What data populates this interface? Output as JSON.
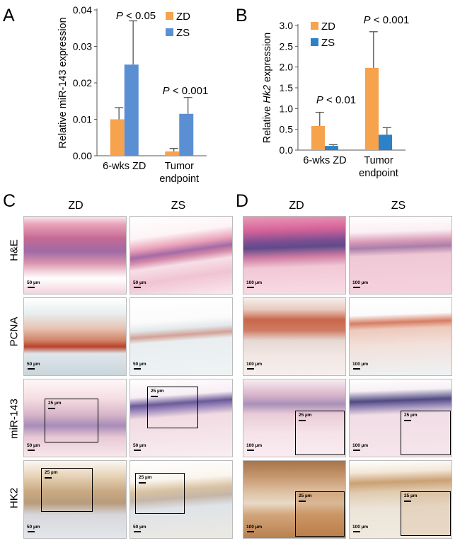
{
  "panels": {
    "a": "A",
    "b": "B",
    "c": "C",
    "d": "D"
  },
  "colors": {
    "zd": "#F7A24C",
    "zs": "#5B8FD3",
    "zs_b": "#2B82C8"
  },
  "chart_data": [
    {
      "type": "bar",
      "id": "A",
      "categories": [
        "6-wks ZD",
        "Tumor endpoint"
      ],
      "category_lines": [
        [
          "6-wks ZD"
        ],
        [
          "Tumor",
          "endpoint"
        ]
      ],
      "series": [
        {
          "name": "ZD",
          "values": [
            0.01,
            0.0012
          ],
          "errors": [
            0.0032,
            0.0008
          ]
        },
        {
          "name": "ZS",
          "values": [
            0.025,
            0.0115
          ],
          "errors": [
            0.012,
            0.0045
          ]
        }
      ],
      "ylabel": "Relative miR-143 expression",
      "ylim": [
        0,
        0.04
      ],
      "ticks": [
        "0.00",
        "0.01",
        "0.02",
        "0.03",
        "0.04"
      ],
      "tick_values": [
        0,
        0.01,
        0.02,
        0.03,
        0.04
      ],
      "annotations": [
        {
          "p": "P",
          "rest": " < 0.05",
          "category": 0
        },
        {
          "p": "P",
          "rest": " < 0.001",
          "category": 1
        }
      ]
    },
    {
      "type": "bar",
      "id": "B",
      "categories": [
        "6-wks ZD",
        "Tumor endpoint"
      ],
      "category_lines": [
        [
          "6-wks ZD"
        ],
        [
          "Tumor",
          "endpoint"
        ]
      ],
      "series": [
        {
          "name": "ZD",
          "values": [
            0.58,
            1.98
          ],
          "errors": [
            0.33,
            0.87
          ]
        },
        {
          "name": "ZS",
          "values": [
            0.1,
            0.37
          ],
          "errors": [
            0.03,
            0.17
          ]
        }
      ],
      "ylabel_parts": [
        "Relative ",
        "Hk2",
        " expression"
      ],
      "ylim": [
        0,
        3.0
      ],
      "ticks": [
        "0.0",
        "0.5",
        "1.0",
        "1.5",
        "2.0",
        "2.5",
        "3.0"
      ],
      "tick_values": [
        0,
        0.5,
        1.0,
        1.5,
        2.0,
        2.5,
        3.0
      ],
      "annotations": [
        {
          "p": "P",
          "rest": " < 0.01",
          "category": 0
        },
        {
          "p": "P",
          "rest": " < 0.001",
          "category": 1
        }
      ]
    }
  ],
  "micro": {
    "col_headers": [
      "ZD",
      "ZS",
      "ZD",
      "ZS"
    ],
    "row_labels": [
      "H&E",
      "PCNA",
      "miR-143",
      "HK2"
    ],
    "scale_50": "50 µm",
    "scale_100": "100 µm",
    "scale_25": "25 µm"
  }
}
